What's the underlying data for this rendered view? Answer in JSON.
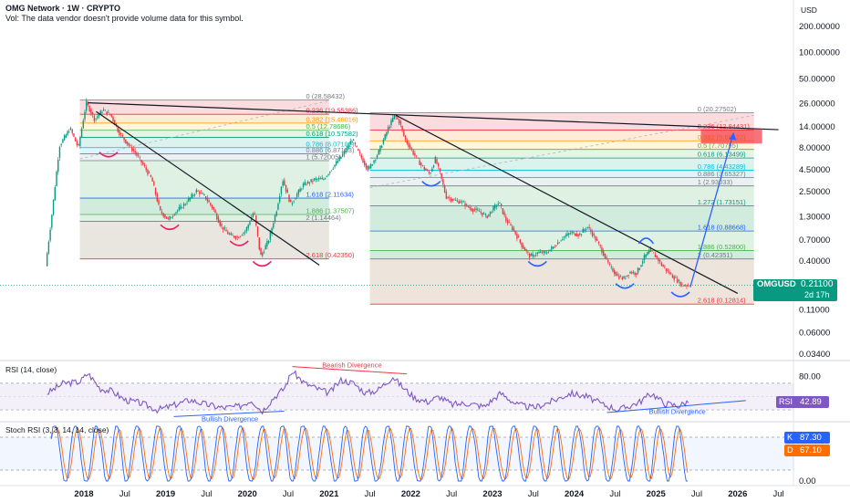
{
  "header": {
    "title": "OMG Network · 1W · CRYPTO",
    "vol_note": "Vol: The data vendor doesn't provide volume data for this symbol.",
    "currency": "USD"
  },
  "colors": {
    "up": "#089981",
    "down": "#f23645",
    "rsi_line": "#7e57c2",
    "stoch_k": "#2962ff",
    "stoch_d": "#ff6d00",
    "trend": "#131722",
    "projection": "#2962ff",
    "last_price": "#089981"
  },
  "price_badge": {
    "symbol": "OMGUSD",
    "price": "0.21100",
    "countdown": "2d 17h"
  },
  "rsi_badge": {
    "label": "RSI",
    "value": "42.89"
  },
  "stoch_badges": [
    {
      "label": "K",
      "value": "87.30",
      "color": "#2962ff"
    },
    {
      "label": "D",
      "value": "67.10",
      "color": "#ff6d00"
    }
  ],
  "chart_data": [
    {
      "type": "candlestick",
      "title": "OMG Network · 1W · CRYPTO",
      "y_scale": "log",
      "y_ticks": [
        "200.00000",
        "100.00000",
        "50.00000",
        "26.00000",
        "14.00000",
        "8.00000",
        "4.50000",
        "2.50000",
        "1.30000",
        "0.70000",
        "0.40000",
        "0.11000",
        "0.06000",
        "0.03400"
      ],
      "y_tick_values": [
        200,
        100,
        50,
        26,
        14,
        8,
        4.5,
        2.5,
        1.3,
        0.7,
        0.4,
        0.11,
        0.06,
        0.034
      ],
      "x_ticks": [
        {
          "label": "2018",
          "bold": true
        },
        {
          "label": "Jul",
          "bold": false
        },
        {
          "label": "2019",
          "bold": true
        },
        {
          "label": "Jul",
          "bold": false
        },
        {
          "label": "2020",
          "bold": true
        },
        {
          "label": "Jul",
          "bold": false
        },
        {
          "label": "2021",
          "bold": true
        },
        {
          "label": "Jul",
          "bold": false
        },
        {
          "label": "2022",
          "bold": true
        },
        {
          "label": "Jul",
          "bold": false
        },
        {
          "label": "2023",
          "bold": true
        },
        {
          "label": "Jul",
          "bold": false
        },
        {
          "label": "2024",
          "bold": true
        },
        {
          "label": "Jul",
          "bold": false
        },
        {
          "label": "2025",
          "bold": true
        },
        {
          "label": "Jul",
          "bold": false
        },
        {
          "label": "2026",
          "bold": true
        },
        {
          "label": "Jul",
          "bold": false
        }
      ],
      "x_tick_dates": [
        2018.0,
        2018.5,
        2019.0,
        2019.5,
        2020.0,
        2020.5,
        2021.0,
        2021.5,
        2022.0,
        2022.5,
        2023.0,
        2023.5,
        2024.0,
        2024.5,
        2025.0,
        2025.5,
        2026.0,
        2026.5
      ],
      "path_points": [
        {
          "date": 2017.55,
          "price": 0.35
        },
        {
          "date": 2017.62,
          "price": 1.2
        },
        {
          "date": 2017.72,
          "price": 8.5
        },
        {
          "date": 2017.85,
          "price": 13.5
        },
        {
          "date": 2017.95,
          "price": 8
        },
        {
          "date": 2018.02,
          "price": 19
        },
        {
          "date": 2018.05,
          "price": 26.5
        },
        {
          "date": 2018.15,
          "price": 17
        },
        {
          "date": 2018.25,
          "price": 22
        },
        {
          "date": 2018.35,
          "price": 19
        },
        {
          "date": 2018.45,
          "price": 12
        },
        {
          "date": 2018.55,
          "price": 9
        },
        {
          "date": 2018.65,
          "price": 7
        },
        {
          "date": 2018.75,
          "price": 5
        },
        {
          "date": 2018.85,
          "price": 3.5
        },
        {
          "date": 2018.95,
          "price": 1.5
        },
        {
          "date": 2019.05,
          "price": 1.2
        },
        {
          "date": 2019.15,
          "price": 1.5
        },
        {
          "date": 2019.25,
          "price": 1.8
        },
        {
          "date": 2019.4,
          "price": 2.6
        },
        {
          "date": 2019.5,
          "price": 2.2
        },
        {
          "date": 2019.6,
          "price": 1.6
        },
        {
          "date": 2019.7,
          "price": 1.0
        },
        {
          "date": 2019.8,
          "price": 0.8
        },
        {
          "date": 2019.9,
          "price": 0.75
        },
        {
          "date": 2020.0,
          "price": 0.9
        },
        {
          "date": 2020.1,
          "price": 1.5
        },
        {
          "date": 2020.18,
          "price": 0.45
        },
        {
          "date": 2020.28,
          "price": 0.7
        },
        {
          "date": 2020.38,
          "price": 1.6
        },
        {
          "date": 2020.45,
          "price": 3.5
        },
        {
          "date": 2020.55,
          "price": 1.8
        },
        {
          "date": 2020.7,
          "price": 3
        },
        {
          "date": 2020.85,
          "price": 3.5
        },
        {
          "date": 2020.95,
          "price": 3.5
        },
        {
          "date": 2021.08,
          "price": 5
        },
        {
          "date": 2021.2,
          "price": 7
        },
        {
          "date": 2021.3,
          "price": 10
        },
        {
          "date": 2021.42,
          "price": 6
        },
        {
          "date": 2021.5,
          "price": 4.5
        },
        {
          "date": 2021.62,
          "price": 7
        },
        {
          "date": 2021.75,
          "price": 14
        },
        {
          "date": 2021.82,
          "price": 19
        },
        {
          "date": 2021.88,
          "price": 16
        },
        {
          "date": 2021.95,
          "price": 10
        },
        {
          "date": 2022.05,
          "price": 7
        },
        {
          "date": 2022.15,
          "price": 5
        },
        {
          "date": 2022.25,
          "price": 4
        },
        {
          "date": 2022.32,
          "price": 6
        },
        {
          "date": 2022.38,
          "price": 4
        },
        {
          "date": 2022.45,
          "price": 2.2
        },
        {
          "date": 2022.55,
          "price": 2.0
        },
        {
          "date": 2022.65,
          "price": 1.9
        },
        {
          "date": 2022.75,
          "price": 1.6
        },
        {
          "date": 2022.85,
          "price": 1.5
        },
        {
          "date": 2022.95,
          "price": 1.3
        },
        {
          "date": 2023.05,
          "price": 1.7
        },
        {
          "date": 2023.1,
          "price": 1.9
        },
        {
          "date": 2023.18,
          "price": 1.2
        },
        {
          "date": 2023.28,
          "price": 0.9
        },
        {
          "date": 2023.38,
          "price": 0.6
        },
        {
          "date": 2023.48,
          "price": 0.45
        },
        {
          "date": 2023.58,
          "price": 0.5
        },
        {
          "date": 2023.68,
          "price": 0.5
        },
        {
          "date": 2023.78,
          "price": 0.6
        },
        {
          "date": 2023.88,
          "price": 0.75
        },
        {
          "date": 2023.98,
          "price": 0.85
        },
        {
          "date": 2024.08,
          "price": 0.8
        },
        {
          "date": 2024.18,
          "price": 1.0
        },
        {
          "date": 2024.25,
          "price": 0.8
        },
        {
          "date": 2024.35,
          "price": 0.55
        },
        {
          "date": 2024.45,
          "price": 0.35
        },
        {
          "date": 2024.55,
          "price": 0.27
        },
        {
          "date": 2024.62,
          "price": 0.25
        },
        {
          "date": 2024.7,
          "price": 0.3
        },
        {
          "date": 2024.78,
          "price": 0.29
        },
        {
          "date": 2024.88,
          "price": 0.45
        },
        {
          "date": 2024.95,
          "price": 0.53
        },
        {
          "date": 2025.02,
          "price": 0.45
        },
        {
          "date": 2025.1,
          "price": 0.35
        },
        {
          "date": 2025.2,
          "price": 0.28
        },
        {
          "date": 2025.28,
          "price": 0.24
        },
        {
          "date": 2025.34,
          "price": 0.21
        },
        {
          "date": 2025.4,
          "price": 0.211
        }
      ],
      "fib_left": {
        "date_from": 2017.95,
        "date_to": 2021.0,
        "levels": [
          {
            "label": "0 (28.58432)",
            "price": 28.58,
            "color": "#787b86"
          },
          {
            "label": "0.236 (19.55386)",
            "price": 19.55,
            "color": "#f23645"
          },
          {
            "label": "0.382 (15.46016)",
            "price": 15.46,
            "color": "#ff9800"
          },
          {
            "label": "0.5 (12.78686)",
            "price": 12.79,
            "color": "#4caf50"
          },
          {
            "label": "0.618 (10.57582)",
            "price": 10.58,
            "color": "#089981"
          },
          {
            "label": "0.786 (8.07101)",
            "price": 8.07,
            "color": "#00bcd4"
          },
          {
            "label": "0.886 (6.87153)",
            "price": 6.87,
            "color": "#787b86"
          },
          {
            "label": "1 (5.72005)",
            "price": 5.72,
            "color": "#787b86"
          },
          {
            "label": "1.618 (2.11634)",
            "price": 2.12,
            "color": "#2962ff"
          },
          {
            "label": "1.886 (1.37507)",
            "price": 1.375,
            "color": "#4caf50"
          },
          {
            "label": "2 (1.14464)",
            "price": 1.145,
            "color": "#787b86"
          },
          {
            "label": "2.618 (0.42350)",
            "price": 0.4235,
            "color": "#f23645"
          }
        ]
      },
      "fib_right": {
        "date_from": 2021.5,
        "date_to": 2026.2,
        "levels": [
          {
            "label": "0 (20.27502)",
            "price": 20.28,
            "color": "#787b86"
          },
          {
            "label": "0.236 (12.84431)",
            "price": 12.84,
            "color": "#f23645"
          },
          {
            "label": "0.382 (9.68422)",
            "price": 9.68,
            "color": "#ff9800"
          },
          {
            "label": "0.5 (7.70795)",
            "price": 7.71,
            "color": "#4caf50"
          },
          {
            "label": "0.618 (6.13499)",
            "price": 6.13,
            "color": "#089981"
          },
          {
            "label": "0.786 (4.43289)",
            "price": 4.43,
            "color": "#00bcd4"
          },
          {
            "label": "0.886 (3.65327)",
            "price": 3.65,
            "color": "#787b86"
          },
          {
            "label": "1 (2.93033)",
            "price": 2.93,
            "color": "#787b86"
          },
          {
            "label": "1.272 (1.73151)",
            "price": 1.73,
            "color": "#089981"
          },
          {
            "label": "1.618 (0.88668)",
            "price": 0.887,
            "color": "#2962ff"
          },
          {
            "label": "1.886 (0.52800)",
            "price": 0.528,
            "color": "#4caf50"
          },
          {
            "label": "2 (0.42351)",
            "price": 0.4235,
            "color": "#787b86"
          },
          {
            "label": "2.618 (0.12814)",
            "price": 0.128,
            "color": "#f23645"
          }
        ]
      },
      "trendlines": [
        {
          "from": {
            "date": 2018.05,
            "price": 26.5
          },
          "to": {
            "date": 2026.5,
            "price": 13
          }
        },
        {
          "from": {
            "date": 2018.15,
            "price": 21
          },
          "to": {
            "date": 2020.88,
            "price": 0.36
          }
        },
        {
          "from": {
            "date": 2021.82,
            "price": 19
          },
          "to": {
            "date": 2026.0,
            "price": 0.17
          }
        }
      ],
      "projection": {
        "from": {
          "date": 2025.42,
          "price": 0.2
        },
        "to": {
          "date": 2025.95,
          "price": 12
        }
      },
      "target_box": {
        "date_from": 2025.55,
        "date_to": 2026.3,
        "price_top": 13.2,
        "price_bottom": 9.0
      },
      "last_price": 0.211
    },
    {
      "type": "line",
      "title": "RSI (14, close)",
      "y_ticks": [
        "80.00",
        "40.00"
      ],
      "y_tick_values": [
        80,
        40
      ],
      "ylim": [
        15,
        100
      ],
      "bands": [
        70,
        30
      ],
      "series": [
        {
          "name": "RSI",
          "points": [
            {
              "date": 2017.55,
              "value": 55
            },
            {
              "date": 2017.75,
              "value": 70
            },
            {
              "date": 2017.95,
              "value": 72
            },
            {
              "date": 2018.05,
              "value": 85
            },
            {
              "date": 2018.2,
              "value": 62
            },
            {
              "date": 2018.35,
              "value": 58
            },
            {
              "date": 2018.5,
              "value": 45
            },
            {
              "date": 2018.7,
              "value": 40
            },
            {
              "date": 2018.9,
              "value": 30
            },
            {
              "date": 2019.05,
              "value": 35
            },
            {
              "date": 2019.3,
              "value": 45
            },
            {
              "date": 2019.5,
              "value": 38
            },
            {
              "date": 2019.7,
              "value": 33
            },
            {
              "date": 2019.9,
              "value": 35
            },
            {
              "date": 2020.05,
              "value": 45
            },
            {
              "date": 2020.18,
              "value": 28
            },
            {
              "date": 2020.32,
              "value": 48
            },
            {
              "date": 2020.45,
              "value": 62
            },
            {
              "date": 2020.55,
              "value": 88
            },
            {
              "date": 2020.7,
              "value": 70
            },
            {
              "date": 2020.85,
              "value": 62
            },
            {
              "date": 2021.0,
              "value": 55
            },
            {
              "date": 2021.15,
              "value": 75
            },
            {
              "date": 2021.3,
              "value": 70
            },
            {
              "date": 2021.45,
              "value": 55
            },
            {
              "date": 2021.6,
              "value": 60
            },
            {
              "date": 2021.78,
              "value": 80
            },
            {
              "date": 2021.9,
              "value": 64
            },
            {
              "date": 2022.05,
              "value": 48
            },
            {
              "date": 2022.2,
              "value": 42
            },
            {
              "date": 2022.35,
              "value": 50
            },
            {
              "date": 2022.5,
              "value": 38
            },
            {
              "date": 2022.7,
              "value": 40
            },
            {
              "date": 2022.9,
              "value": 35
            },
            {
              "date": 2023.1,
              "value": 55
            },
            {
              "date": 2023.3,
              "value": 38
            },
            {
              "date": 2023.5,
              "value": 33
            },
            {
              "date": 2023.75,
              "value": 44
            },
            {
              "date": 2023.95,
              "value": 55
            },
            {
              "date": 2024.15,
              "value": 50
            },
            {
              "date": 2024.35,
              "value": 38
            },
            {
              "date": 2024.55,
              "value": 30
            },
            {
              "date": 2024.8,
              "value": 42
            },
            {
              "date": 2024.95,
              "value": 55
            },
            {
              "date": 2025.1,
              "value": 40
            },
            {
              "date": 2025.28,
              "value": 36
            },
            {
              "date": 2025.4,
              "value": 42.89
            }
          ]
        }
      ],
      "trendlines": [
        {
          "label": "Bearish Divergence",
          "color": "#f23645",
          "from": {
            "date": 2020.55,
            "value": 95
          },
          "to": {
            "date": 2021.95,
            "value": 84
          }
        },
        {
          "label": "Bullish Divergence",
          "color": "#2962ff",
          "from": {
            "date": 2019.1,
            "value": 20
          },
          "to": {
            "date": 2020.45,
            "value": 28
          }
        },
        {
          "label": "Bullish Divergence",
          "color": "#2962ff",
          "from": {
            "date": 2024.4,
            "value": 26
          },
          "to": {
            "date": 2026.1,
            "value": 44
          }
        }
      ]
    },
    {
      "type": "line",
      "title": "Stoch RSI (3, 3, 14, 14, close)",
      "y_ticks": [
        "80.00",
        "0.00"
      ],
      "y_tick_values": [
        80,
        0
      ],
      "ylim": [
        -5,
        105
      ],
      "bands": [
        80,
        20
      ],
      "series": [
        {
          "name": "K",
          "values_note": "oscillating",
          "k": true
        },
        {
          "name": "D",
          "k": false
        }
      ]
    }
  ]
}
